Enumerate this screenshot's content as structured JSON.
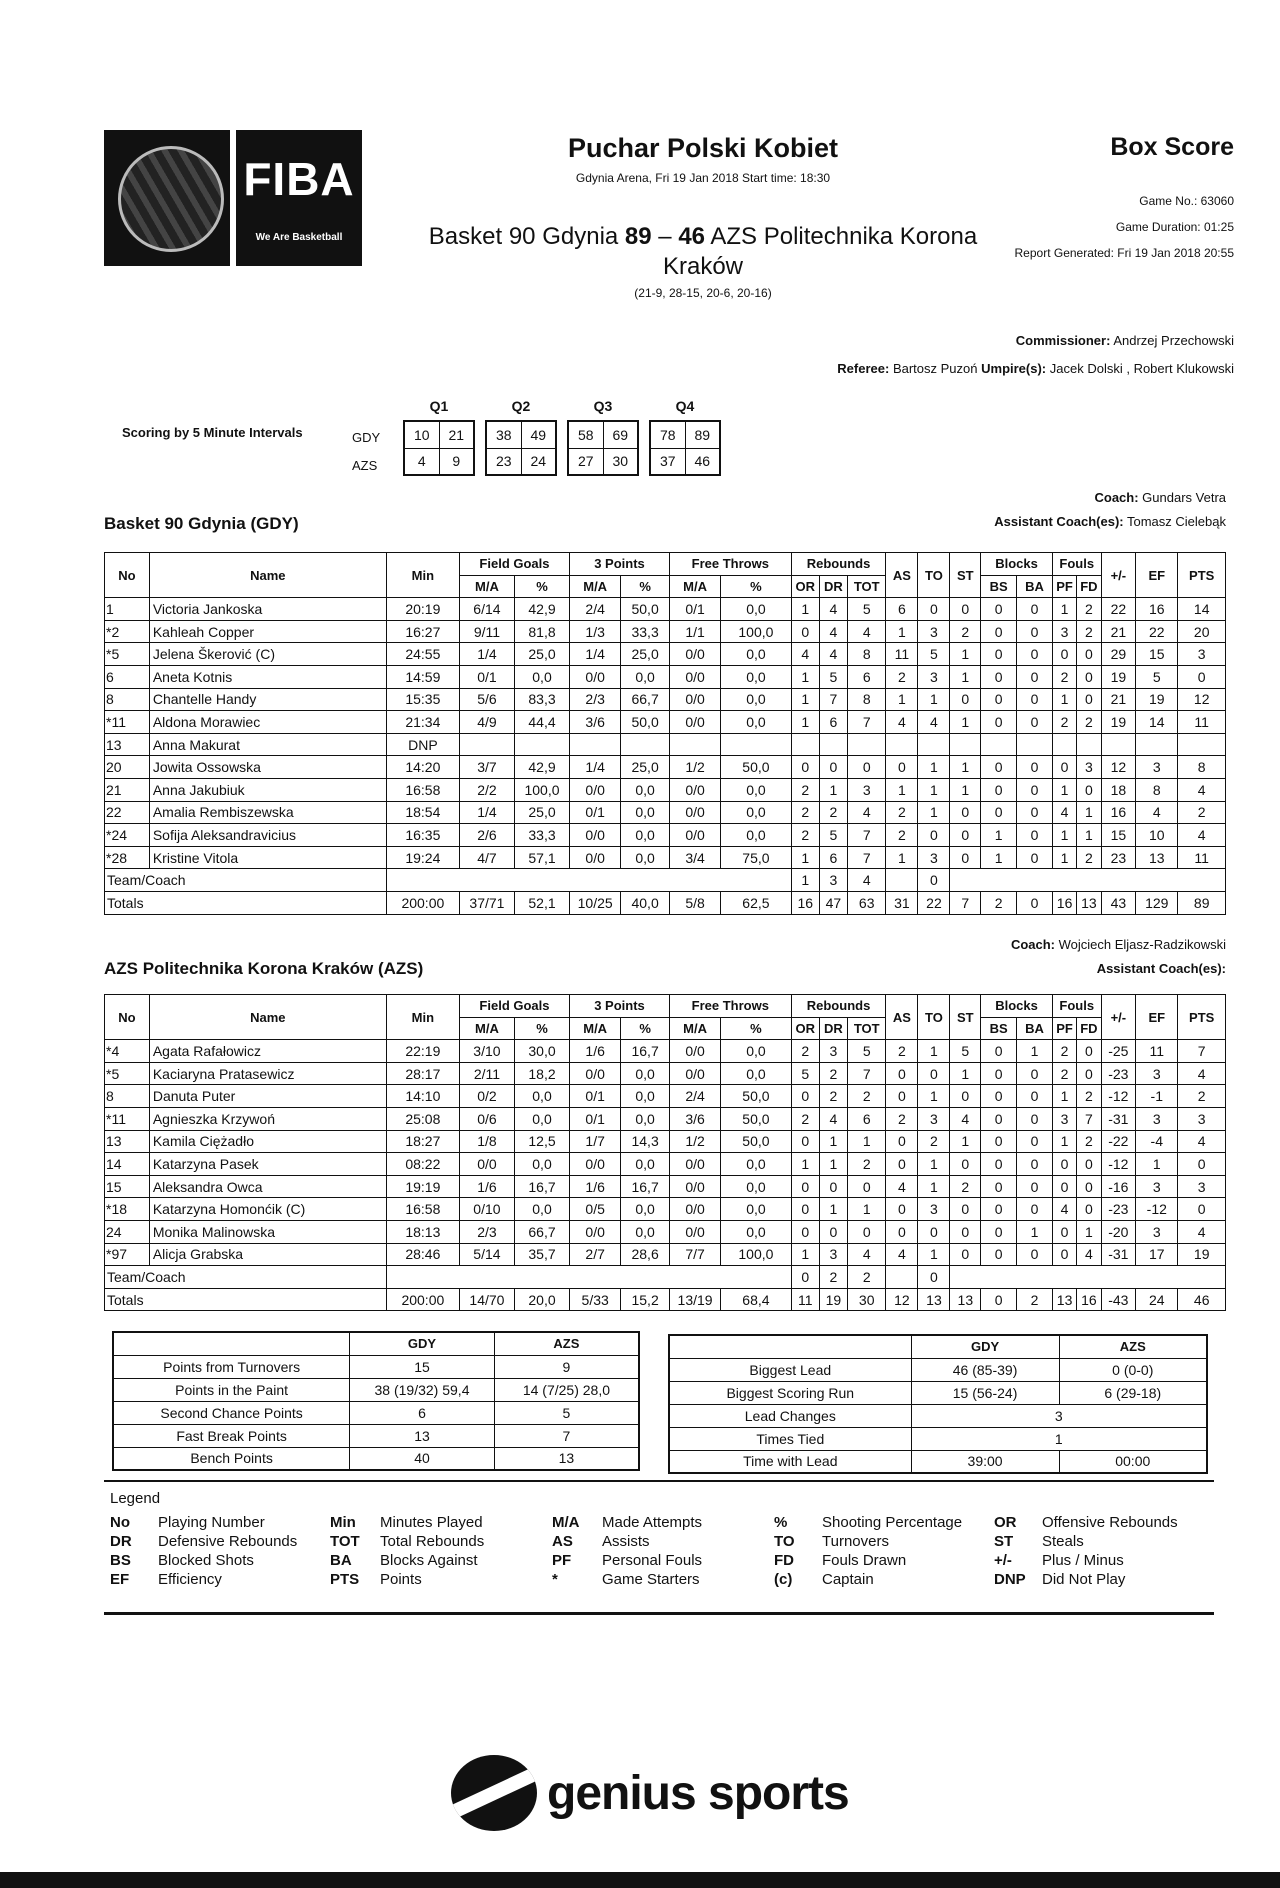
{
  "header": {
    "logo_text": "FIBA",
    "logo_tagline": "We Are Basketball",
    "title": "Puchar Polski Kobiet",
    "venue": "Gdynia Arena, Fri 19 Jan 2018 Start time: 18:30",
    "home": "Basket 90 Gdynia",
    "home_score": "89",
    "dash": "–",
    "away_score": "46",
    "away": "AZS Politechnika Korona Kraków",
    "quarter_scores": "(21-9, 28-15, 20-6, 20-16)",
    "doc_type": "Box Score",
    "game_no": "Game No.: 63060",
    "duration": "Game Duration: 01:25",
    "generated": "Report Generated: Fri 19 Jan 2018 20:55"
  },
  "officials": {
    "commissioner_label": "Commissioner:",
    "commissioner": "Andrzej Przechowski",
    "referee_label": "Referee:",
    "referee": "Bartosz Puzoń",
    "umpires_label": "Umpire(s):",
    "umpires": "Jacek Dolski , Robert Klukowski"
  },
  "scoring": {
    "label": "Scoring by 5 Minute Intervals",
    "quarters": [
      "Q1",
      "Q2",
      "Q3",
      "Q4"
    ],
    "teams": [
      "GDY",
      "AZS"
    ],
    "gdy": [
      [
        "10",
        "21"
      ],
      [
        "38",
        "49"
      ],
      [
        "58",
        "69"
      ],
      [
        "78",
        "89"
      ]
    ],
    "azs": [
      [
        "4",
        "9"
      ],
      [
        "23",
        "24"
      ],
      [
        "27",
        "30"
      ],
      [
        "37",
        "46"
      ]
    ]
  },
  "columns": {
    "top": [
      "No",
      "Name",
      "Min",
      "Field Goals",
      "3 Points",
      "Free Throws",
      "Rebounds",
      "AS",
      "TO",
      "ST",
      "Blocks",
      "Fouls",
      "+/-",
      "EF",
      "PTS"
    ],
    "sub": [
      "M/A",
      "%",
      "M/A",
      "%",
      "M/A",
      "%",
      "OR",
      "DR",
      "TOT",
      "BS",
      "BA",
      "PF",
      "FD"
    ]
  },
  "team1": {
    "title": "Basket 90 Gdynia (GDY)",
    "coach_label": "Coach:",
    "coach": "Gundars Vetra",
    "asst_label": "Assistant Coach(es):",
    "asst": "Tomasz Cielebąk",
    "players": [
      [
        "1",
        "Victoria Jankoska",
        "20:19",
        "6/14",
        "42,9",
        "2/4",
        "50,0",
        "0/1",
        "0,0",
        "1",
        "4",
        "5",
        "6",
        "0",
        "0",
        "0",
        "0",
        "1",
        "2",
        "22",
        "16",
        "14"
      ],
      [
        "*2",
        "Kahleah Copper",
        "16:27",
        "9/11",
        "81,8",
        "1/3",
        "33,3",
        "1/1",
        "100,0",
        "0",
        "4",
        "4",
        "1",
        "3",
        "2",
        "0",
        "0",
        "3",
        "2",
        "21",
        "22",
        "20"
      ],
      [
        "*5",
        "Jelena Škerović (C)",
        "24:55",
        "1/4",
        "25,0",
        "1/4",
        "25,0",
        "0/0",
        "0,0",
        "4",
        "4",
        "8",
        "11",
        "5",
        "1",
        "0",
        "0",
        "0",
        "0",
        "29",
        "15",
        "3"
      ],
      [
        "6",
        "Aneta Kotnis",
        "14:59",
        "0/1",
        "0,0",
        "0/0",
        "0,0",
        "0/0",
        "0,0",
        "1",
        "5",
        "6",
        "2",
        "3",
        "1",
        "0",
        "0",
        "2",
        "0",
        "19",
        "5",
        "0"
      ],
      [
        "8",
        "Chantelle Handy",
        "15:35",
        "5/6",
        "83,3",
        "2/3",
        "66,7",
        "0/0",
        "0,0",
        "1",
        "7",
        "8",
        "1",
        "1",
        "0",
        "0",
        "0",
        "1",
        "0",
        "21",
        "19",
        "12"
      ],
      [
        "*11",
        "Aldona Morawiec",
        "21:34",
        "4/9",
        "44,4",
        "3/6",
        "50,0",
        "0/0",
        "0,0",
        "1",
        "6",
        "7",
        "4",
        "4",
        "1",
        "0",
        "0",
        "2",
        "2",
        "19",
        "14",
        "11"
      ],
      [
        "13",
        "Anna Makurat",
        "DNP",
        "",
        "",
        "",
        "",
        "",
        "",
        "",
        "",
        "",
        "",
        "",
        "",
        "",
        "",
        "",
        "",
        "",
        "",
        ""
      ],
      [
        "20",
        "Jowita Ossowska",
        "14:20",
        "3/7",
        "42,9",
        "1/4",
        "25,0",
        "1/2",
        "50,0",
        "0",
        "0",
        "0",
        "0",
        "1",
        "1",
        "0",
        "0",
        "0",
        "3",
        "12",
        "3",
        "8"
      ],
      [
        "21",
        "Anna Jakubiuk",
        "16:58",
        "2/2",
        "100,0",
        "0/0",
        "0,0",
        "0/0",
        "0,0",
        "2",
        "1",
        "3",
        "1",
        "1",
        "1",
        "0",
        "0",
        "1",
        "0",
        "18",
        "8",
        "4"
      ],
      [
        "22",
        "Amalia Rembiszewska",
        "18:54",
        "1/4",
        "25,0",
        "0/1",
        "0,0",
        "0/0",
        "0,0",
        "2",
        "2",
        "4",
        "2",
        "1",
        "0",
        "0",
        "0",
        "4",
        "1",
        "16",
        "4",
        "2"
      ],
      [
        "*24",
        "Sofija Aleksandravicius",
        "16:35",
        "2/6",
        "33,3",
        "0/0",
        "0,0",
        "0/0",
        "0,0",
        "2",
        "5",
        "7",
        "2",
        "0",
        "0",
        "1",
        "0",
        "1",
        "1",
        "15",
        "10",
        "4"
      ],
      [
        "*28",
        "Kristine Vitola",
        "19:24",
        "4/7",
        "57,1",
        "0/0",
        "0,0",
        "3/4",
        "75,0",
        "1",
        "6",
        "7",
        "1",
        "3",
        "0",
        "1",
        "0",
        "1",
        "2",
        "23",
        "13",
        "11"
      ]
    ],
    "team_row": {
      "label": "Team/Coach",
      "or": "1",
      "dr": "3",
      "tot": "4",
      "to": "0"
    },
    "totals": [
      "Totals",
      "200:00",
      "37/71",
      "52,1",
      "10/25",
      "40,0",
      "5/8",
      "62,5",
      "16",
      "47",
      "63",
      "31",
      "22",
      "7",
      "2",
      "0",
      "16",
      "13",
      "43",
      "129",
      "89"
    ]
  },
  "team2": {
    "title": "AZS Politechnika Korona Kraków (AZS)",
    "coach_label": "Coach:",
    "coach": "Wojciech Eljasz-Radzikowski",
    "asst_label": "Assistant Coach(es):",
    "asst": "",
    "players": [
      [
        "*4",
        "Agata Rafałowicz",
        "22:19",
        "3/10",
        "30,0",
        "1/6",
        "16,7",
        "0/0",
        "0,0",
        "2",
        "3",
        "5",
        "2",
        "1",
        "5",
        "0",
        "1",
        "2",
        "0",
        "-25",
        "11",
        "7"
      ],
      [
        "*5",
        "Kaciaryna Pratasewicz",
        "28:17",
        "2/11",
        "18,2",
        "0/0",
        "0,0",
        "0/0",
        "0,0",
        "5",
        "2",
        "7",
        "0",
        "0",
        "1",
        "0",
        "0",
        "2",
        "0",
        "-23",
        "3",
        "4"
      ],
      [
        "8",
        "Danuta Puter",
        "14:10",
        "0/2",
        "0,0",
        "0/1",
        "0,0",
        "2/4",
        "50,0",
        "0",
        "2",
        "2",
        "0",
        "1",
        "0",
        "0",
        "0",
        "1",
        "2",
        "-12",
        "-1",
        "2"
      ],
      [
        "*11",
        "Agnieszka Krzywoń",
        "25:08",
        "0/6",
        "0,0",
        "0/1",
        "0,0",
        "3/6",
        "50,0",
        "2",
        "4",
        "6",
        "2",
        "3",
        "4",
        "0",
        "0",
        "3",
        "7",
        "-31",
        "3",
        "3"
      ],
      [
        "13",
        "Kamila Ciężadło",
        "18:27",
        "1/8",
        "12,5",
        "1/7",
        "14,3",
        "1/2",
        "50,0",
        "0",
        "1",
        "1",
        "0",
        "2",
        "1",
        "0",
        "0",
        "1",
        "2",
        "-22",
        "-4",
        "4"
      ],
      [
        "14",
        "Katarzyna Pasek",
        "08:22",
        "0/0",
        "0,0",
        "0/0",
        "0,0",
        "0/0",
        "0,0",
        "1",
        "1",
        "2",
        "0",
        "1",
        "0",
        "0",
        "0",
        "0",
        "0",
        "-12",
        "1",
        "0"
      ],
      [
        "15",
        "Aleksandra Owca",
        "19:19",
        "1/6",
        "16,7",
        "1/6",
        "16,7",
        "0/0",
        "0,0",
        "0",
        "0",
        "0",
        "4",
        "1",
        "2",
        "0",
        "0",
        "0",
        "0",
        "-16",
        "3",
        "3"
      ],
      [
        "*18",
        "Katarzyna Homonćik (C)",
        "16:58",
        "0/10",
        "0,0",
        "0/5",
        "0,0",
        "0/0",
        "0,0",
        "0",
        "1",
        "1",
        "0",
        "3",
        "0",
        "0",
        "0",
        "4",
        "0",
        "-23",
        "-12",
        "0"
      ],
      [
        "24",
        "Monika Malinowska",
        "18:13",
        "2/3",
        "66,7",
        "0/0",
        "0,0",
        "0/0",
        "0,0",
        "0",
        "0",
        "0",
        "0",
        "0",
        "0",
        "0",
        "1",
        "0",
        "1",
        "-20",
        "3",
        "4"
      ],
      [
        "*97",
        "Alicja Grabska",
        "28:46",
        "5/14",
        "35,7",
        "2/7",
        "28,6",
        "7/7",
        "100,0",
        "1",
        "3",
        "4",
        "4",
        "1",
        "0",
        "0",
        "0",
        "0",
        "4",
        "-31",
        "17",
        "19"
      ]
    ],
    "team_row": {
      "label": "Team/Coach",
      "or": "0",
      "dr": "2",
      "tot": "2",
      "to": "0"
    },
    "totals": [
      "Totals",
      "200:00",
      "14/70",
      "20,0",
      "5/33",
      "15,2",
      "13/19",
      "68,4",
      "11",
      "19",
      "30",
      "12",
      "13",
      "13",
      "0",
      "2",
      "13",
      "16",
      "-43",
      "24",
      "46"
    ]
  },
  "summary_left": {
    "head": [
      "",
      "GDY",
      "AZS"
    ],
    "rows": [
      [
        "Points from Turnovers",
        "15",
        "9"
      ],
      [
        "Points in the Paint",
        "38 (19/32) 59,4",
        "14 (7/25) 28,0"
      ],
      [
        "Second Chance Points",
        "6",
        "5"
      ],
      [
        "Fast Break Points",
        "13",
        "7"
      ],
      [
        "Bench Points",
        "40",
        "13"
      ]
    ]
  },
  "summary_right": {
    "head": [
      "",
      "GDY",
      "AZS"
    ],
    "rows": [
      [
        "Biggest Lead",
        "46 (85-39)",
        "0 (0-0)"
      ],
      [
        "Biggest Scoring Run",
        "15 (56-24)",
        "6 (29-18)"
      ],
      [
        "Lead Changes",
        "3"
      ],
      [
        "Times Tied",
        "1"
      ],
      [
        "Time with Lead",
        "39:00",
        "00:00"
      ]
    ]
  },
  "legend": {
    "title": "Legend",
    "items": [
      [
        "No",
        "Playing Number"
      ],
      [
        "Min",
        "Minutes Played"
      ],
      [
        "M/A",
        "Made Attempts"
      ],
      [
        "%",
        "Shooting Percentage"
      ],
      [
        "OR",
        "Offensive Rebounds"
      ],
      [
        "DR",
        "Defensive Rebounds"
      ],
      [
        "TOT",
        "Total Rebounds"
      ],
      [
        "AS",
        "Assists"
      ],
      [
        "TO",
        "Turnovers"
      ],
      [
        "ST",
        "Steals"
      ],
      [
        "BS",
        "Blocked Shots"
      ],
      [
        "BA",
        "Blocks Against"
      ],
      [
        "PF",
        "Personal Fouls"
      ],
      [
        "FD",
        "Fouls Drawn"
      ],
      [
        "+/-",
        "Plus / Minus"
      ],
      [
        "EF",
        "Efficiency"
      ],
      [
        "PTS",
        "Points"
      ],
      [
        "*",
        "Game Starters"
      ],
      [
        "(c)",
        "Captain"
      ],
      [
        "DNP",
        "Did Not Play"
      ]
    ]
  },
  "footer": {
    "brand": "genius sports"
  }
}
